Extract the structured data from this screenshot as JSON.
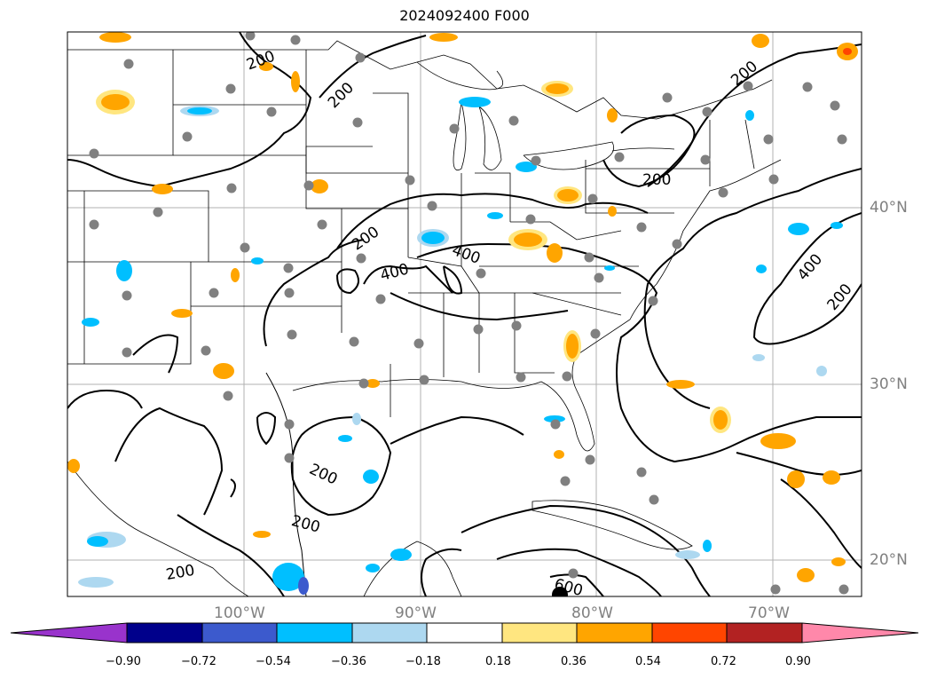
{
  "title": "2024092400 F000",
  "lat_labels": [
    "40°N",
    "30°N",
    "20°N"
  ],
  "lon_labels": [
    "100°W",
    "90°W",
    "80°W",
    "70°W"
  ],
  "contour_labels": [
    "200",
    "200",
    "200",
    "200",
    "400",
    "400",
    "200",
    "200",
    "200",
    "400",
    "200",
    "600"
  ],
  "colorbar": {
    "colors": [
      "#9933cc",
      "#00008b",
      "#3c5acd",
      "#00bfff",
      "#add8f0",
      "#ffffff",
      "#ffe680",
      "#ffa500",
      "#ff4500",
      "#b22222",
      "#ff88aa"
    ],
    "tick_labels": [
      "−0.90",
      "−0.72",
      "−0.54",
      "−0.36",
      "−0.18",
      "0.18",
      "0.36",
      "0.54",
      "0.72",
      "0.90"
    ]
  },
  "colors": {
    "positive_fill_light": "#ffe680",
    "positive_fill": "#ffa500",
    "negative_fill_light": "#add8f0",
    "negative_fill": "#00bfff",
    "station_marker": "#808080",
    "grid": "#b0b0b0"
  }
}
